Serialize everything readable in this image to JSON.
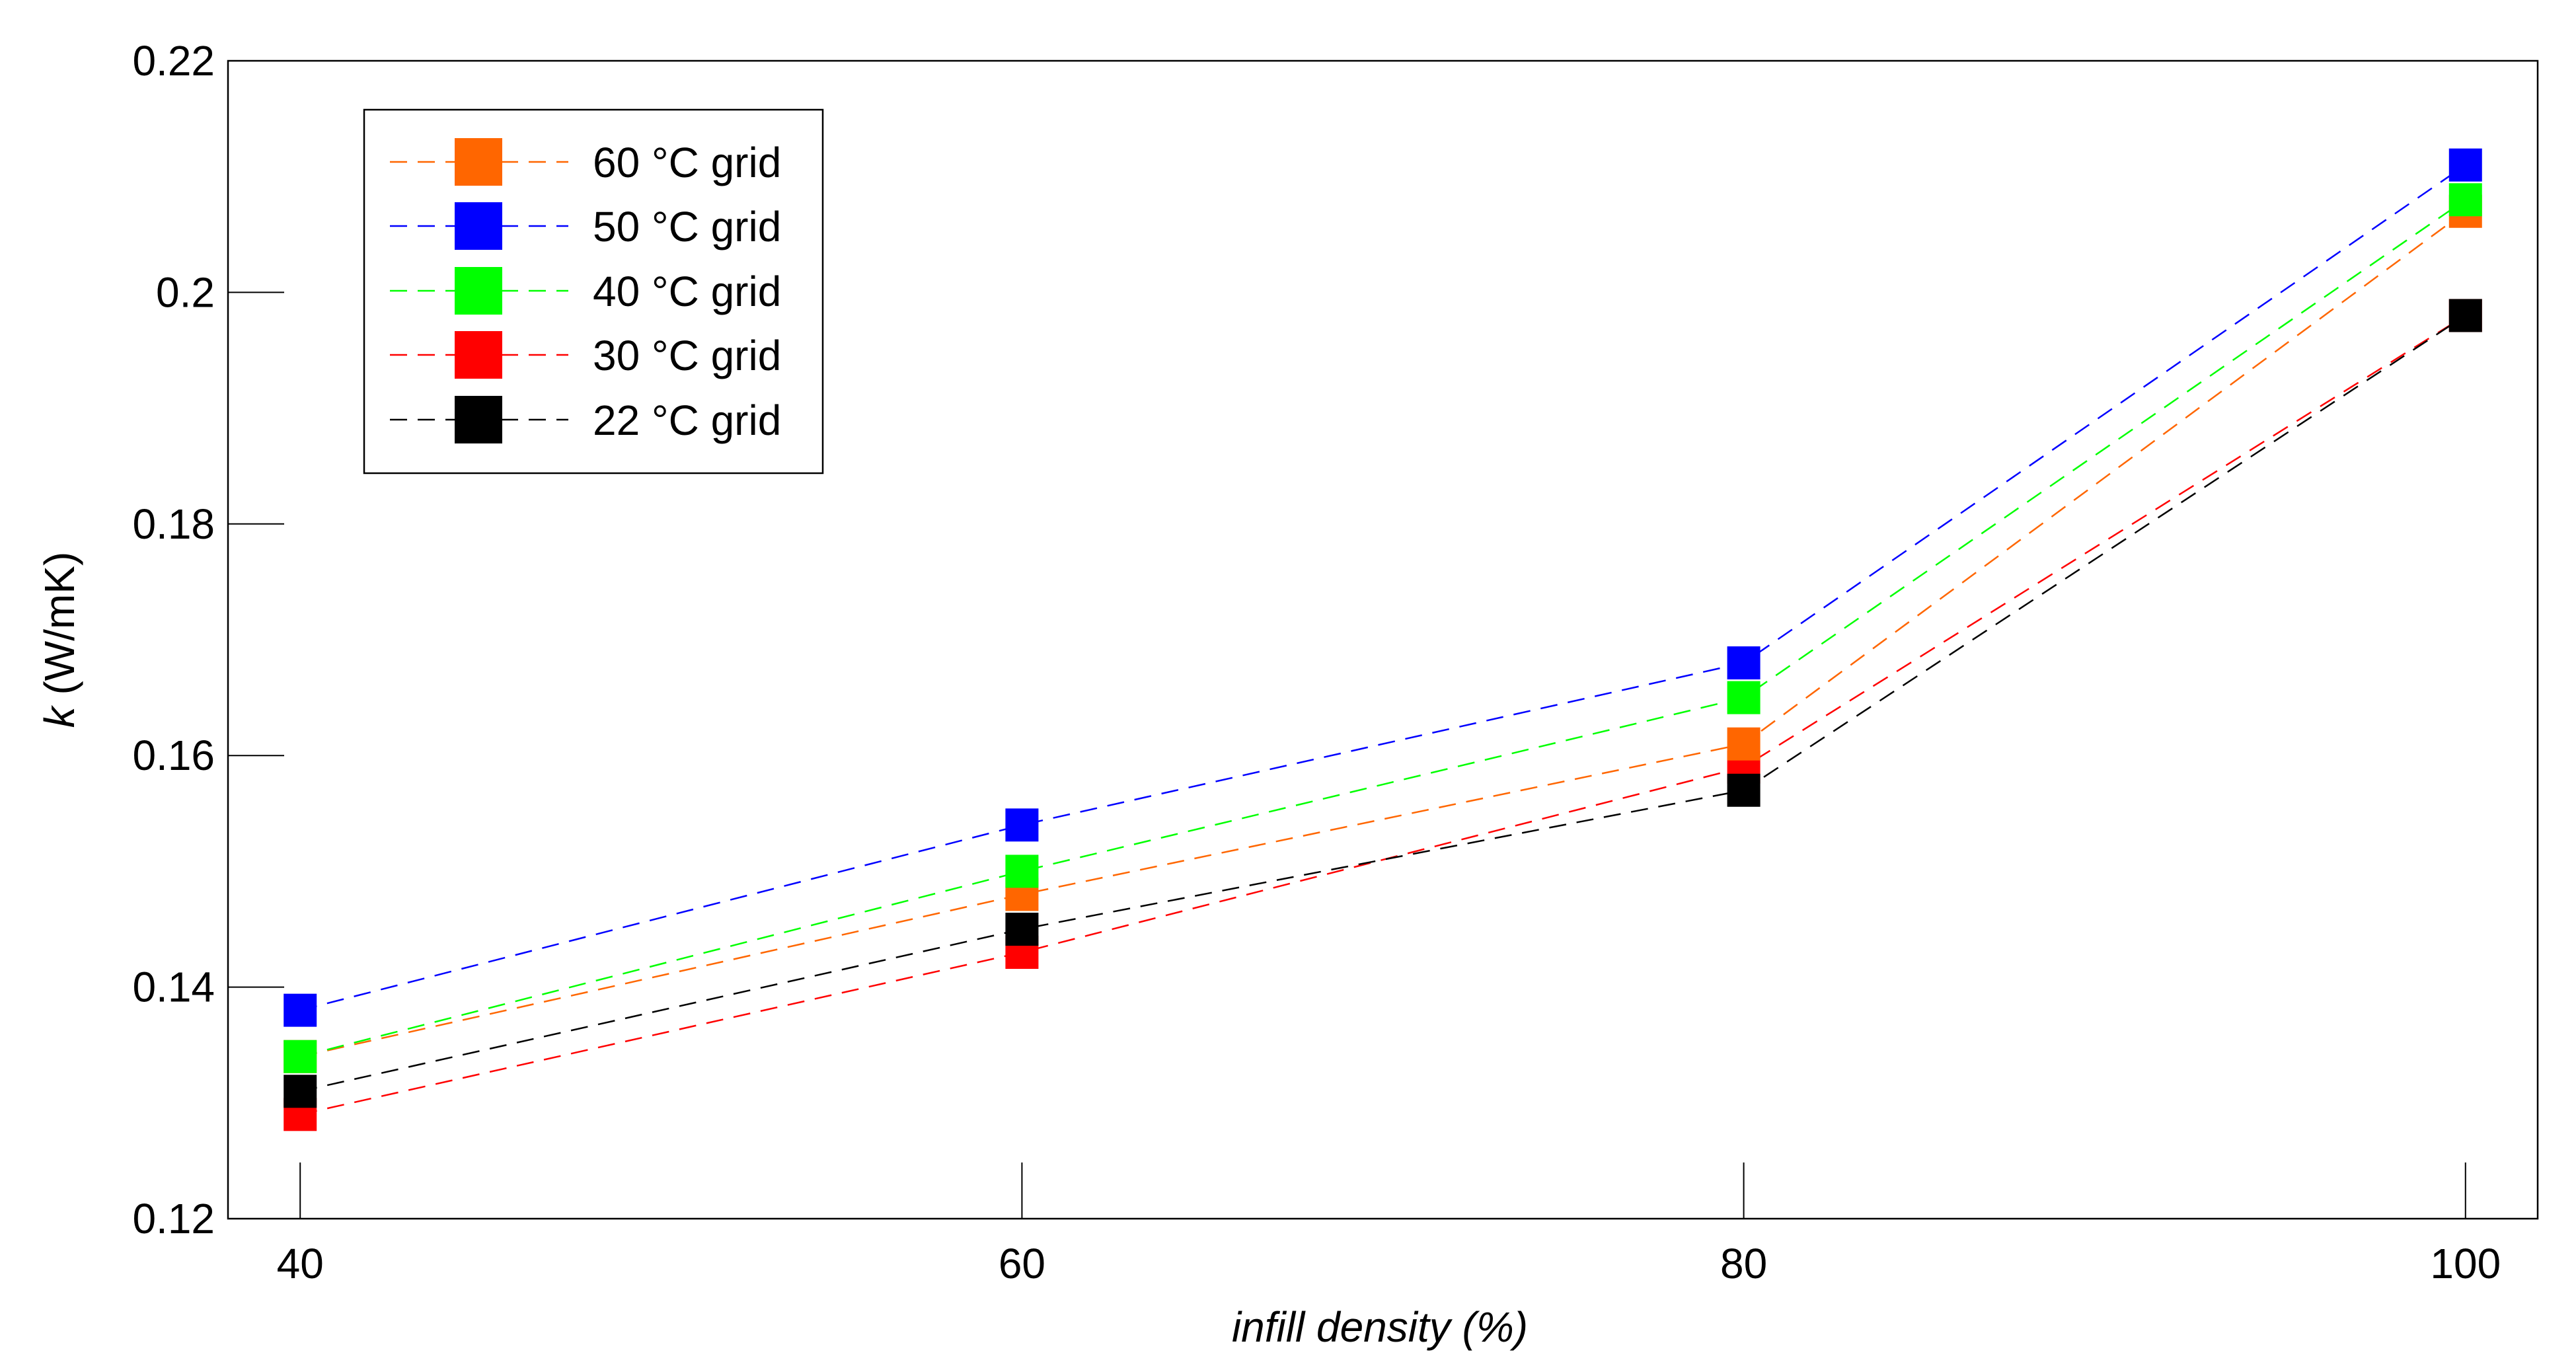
{
  "chart_data": {
    "type": "line",
    "title": "",
    "xlabel": "infill density (%)",
    "ylabel_symbol": "k",
    "ylabel_unit": "(W/mK)",
    "x": [
      40,
      60,
      80,
      100
    ],
    "xlim": [
      38,
      102
    ],
    "ylim": [
      0.12,
      0.22
    ],
    "xticks": [
      40,
      60,
      80,
      100
    ],
    "yticks": [
      0.12,
      0.14,
      0.16,
      0.18,
      0.2,
      0.22
    ],
    "ytick_labels": [
      "0.12",
      "0.14",
      "0.16",
      "0.18",
      "0.2",
      "0.22"
    ],
    "grid": false,
    "legend_position": "top-left",
    "series": [
      {
        "name": "60 °C grid",
        "color": "#ff6600",
        "values": [
          0.134,
          0.148,
          0.161,
          0.207
        ]
      },
      {
        "name": "50 °C grid",
        "color": "#0000ff",
        "values": [
          0.138,
          0.154,
          0.168,
          0.211
        ]
      },
      {
        "name": "40 °C grid",
        "color": "#00ff00",
        "values": [
          0.134,
          0.15,
          0.165,
          0.208
        ]
      },
      {
        "name": "30 °C grid",
        "color": "#ff0000",
        "values": [
          0.129,
          0.143,
          0.159,
          0.198
        ]
      },
      {
        "name": "22 °C grid",
        "color": "#000000",
        "values": [
          0.131,
          0.145,
          0.157,
          0.198
        ]
      }
    ],
    "draw_order": [
      3,
      4,
      1,
      0,
      2
    ]
  }
}
